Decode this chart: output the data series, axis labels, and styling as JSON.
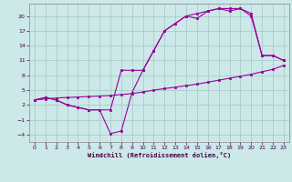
{
  "xlabel": "Windchill (Refroidissement éolien,°C)",
  "bg_color": "#cce8e8",
  "grid_color": "#aacccc",
  "line_color": "#990099",
  "xlim": [
    -0.5,
    23.5
  ],
  "ylim": [
    -5.5,
    22.5
  ],
  "xticks": [
    0,
    1,
    2,
    3,
    4,
    5,
    6,
    7,
    8,
    9,
    10,
    11,
    12,
    13,
    14,
    15,
    16,
    17,
    18,
    19,
    20,
    21,
    22,
    23
  ],
  "yticks": [
    -4,
    -1,
    2,
    5,
    8,
    11,
    14,
    17,
    20
  ],
  "line_a_x": [
    0,
    1,
    2,
    3,
    4,
    5,
    6,
    7,
    8,
    9,
    10,
    11,
    12,
    13,
    14,
    15,
    16,
    17,
    18,
    19,
    20,
    21,
    22,
    23
  ],
  "line_a_y": [
    3,
    3.2,
    3.4,
    3.5,
    3.6,
    3.7,
    3.8,
    3.9,
    4.1,
    4.3,
    4.6,
    5.0,
    5.3,
    5.6,
    5.9,
    6.2,
    6.6,
    7.0,
    7.4,
    7.8,
    8.2,
    8.7,
    9.2,
    10.0
  ],
  "line_b_x": [
    0,
    1,
    2,
    3,
    4,
    5,
    6,
    7,
    8,
    9,
    10,
    11,
    12,
    13,
    14,
    15,
    16,
    17,
    18,
    19,
    20,
    21,
    22,
    23
  ],
  "line_b_y": [
    3,
    3.5,
    3.0,
    2.0,
    1.5,
    1.0,
    1.0,
    -3.8,
    -3.3,
    4.5,
    9.0,
    13.0,
    17.0,
    18.5,
    20.0,
    19.5,
    21.0,
    21.5,
    21.0,
    21.5,
    20.0,
    12.0,
    12.0,
    11.0
  ],
  "line_c_x": [
    0,
    1,
    2,
    3,
    4,
    5,
    6,
    7,
    8,
    9,
    10,
    11,
    12,
    13,
    14,
    15,
    16,
    17,
    18,
    19,
    20,
    21,
    22,
    23
  ],
  "line_c_y": [
    3,
    3.5,
    3.0,
    2.0,
    1.5,
    1.0,
    1.0,
    1.0,
    9.0,
    9.0,
    9.0,
    13.0,
    17.0,
    18.5,
    20.0,
    20.5,
    21.0,
    21.5,
    21.5,
    21.5,
    20.5,
    12.0,
    12.0,
    11.0
  ]
}
